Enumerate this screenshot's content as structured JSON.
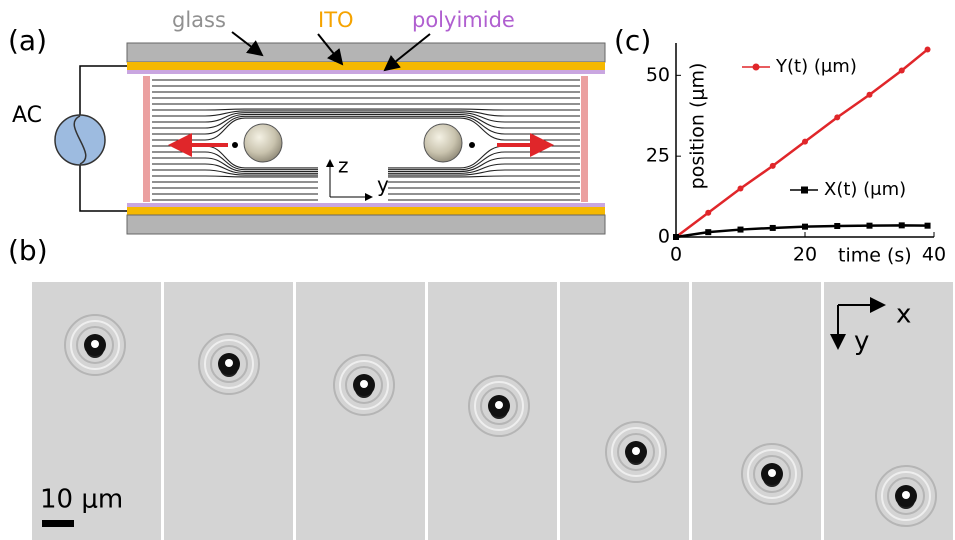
{
  "panel_labels": [
    "(a)",
    "(b)",
    "(c)"
  ],
  "diagram": {
    "glass": "glass",
    "ito": "ITO",
    "polyimide": "polyimide",
    "ac": "AC",
    "axis_z": "z",
    "axis_y": "y"
  },
  "micrographs": {
    "scale_bar": "10 μm",
    "axis_x": "x",
    "axis_y": "y"
  },
  "chart_data": {
    "type": "line",
    "xlabel": "time (s)",
    "ylabel": "position (μm)",
    "x": [
      0,
      5,
      10,
      15,
      20,
      25,
      30,
      35,
      39
    ],
    "series": [
      {
        "name": "Y(t) (μm)",
        "color": "#e0262a",
        "values": [
          0,
          7.5,
          15,
          22,
          29.5,
          37,
          44,
          51.5,
          58
        ]
      },
      {
        "name": "X(t) (μm)",
        "color": "#000000",
        "values": [
          0,
          1.5,
          2.3,
          2.8,
          3.2,
          3.4,
          3.5,
          3.6,
          3.5
        ]
      }
    ],
    "xlim": [
      0,
      40
    ],
    "ylim": [
      0,
      60
    ],
    "xticks": [
      0,
      20,
      40
    ],
    "yticks": [
      0,
      25,
      50
    ]
  }
}
